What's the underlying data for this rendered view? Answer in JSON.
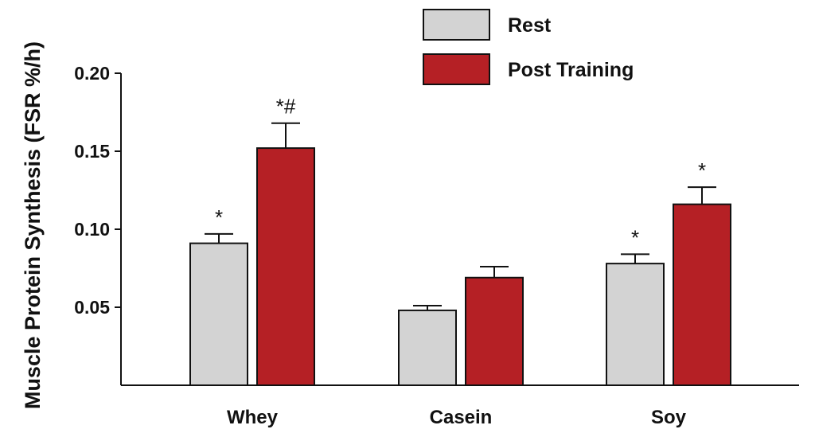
{
  "chart_data": {
    "type": "bar",
    "categories": [
      "Whey",
      "Casein",
      "Soy"
    ],
    "ylabel": "Muscle Protein Synthesis (FSR %/h)",
    "ylim": [
      0,
      0.2
    ],
    "yticks": [
      "0.05",
      "0.10",
      "0.15",
      "0.20"
    ],
    "ytick_values": [
      0.05,
      0.1,
      0.15,
      0.2
    ],
    "legend_position": "top-center",
    "series": [
      {
        "name": "Rest",
        "color": "#d3d3d3",
        "values": [
          0.091,
          0.048,
          0.078
        ],
        "errors": [
          0.006,
          0.003,
          0.006
        ],
        "annotations": [
          "*",
          "",
          "*"
        ]
      },
      {
        "name": "Post Training",
        "color": "#b52025",
        "values": [
          0.152,
          0.069,
          0.116
        ],
        "errors": [
          0.016,
          0.007,
          0.011
        ],
        "annotations": [
          "*#",
          "",
          "*"
        ]
      }
    ]
  }
}
